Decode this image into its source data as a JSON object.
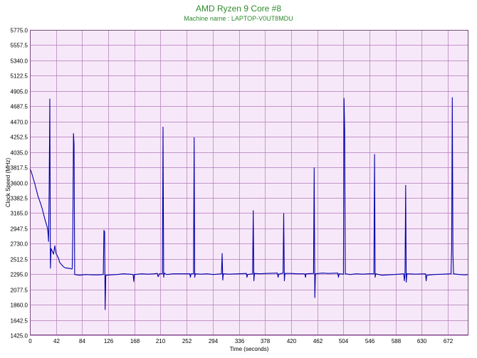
{
  "chart_data": {
    "type": "line",
    "title": "AMD Ryzen 9 Core #8",
    "subtitle": "Machine name : LAPTOP-V0UT8MDU",
    "xlabel": "Time (seconds)",
    "ylabel": "Clock Speed (MHz)",
    "xlim": [
      0,
      705
    ],
    "ylim": [
      1425.0,
      5775.0
    ],
    "x_ticks": [
      "0",
      "42",
      "84",
      "126",
      "168",
      "210",
      "252",
      "294",
      "336",
      "378",
      "420",
      "462",
      "504",
      "546",
      "588",
      "630",
      "672"
    ],
    "y_ticks": [
      "1425.0",
      "1642.5",
      "1860.0",
      "2077.5",
      "2295.0",
      "2512.5",
      "2730.0",
      "2947.5",
      "3165.0",
      "3382.5",
      "3600.0",
      "3817.5",
      "4035.0",
      "4252.5",
      "4470.0",
      "4687.5",
      "4905.0",
      "5122.5",
      "5340.0",
      "5557.5",
      "5775.0"
    ],
    "grid": true,
    "line_color": "#0000aa",
    "plot_background": "#f7e8f9",
    "grid_color": "#b07ab8",
    "series": [
      {
        "values": [
          [
            0,
            3800
          ],
          [
            2,
            3760
          ],
          [
            4,
            3700
          ],
          [
            6,
            3640
          ],
          [
            8,
            3580
          ],
          [
            10,
            3510
          ],
          [
            12,
            3440
          ],
          [
            14,
            3380
          ],
          [
            16,
            3330
          ],
          [
            18,
            3280
          ],
          [
            20,
            3220
          ],
          [
            22,
            3150
          ],
          [
            24,
            3080
          ],
          [
            26,
            3020
          ],
          [
            28,
            2960
          ],
          [
            29,
            2900
          ],
          [
            30,
            2760
          ],
          [
            31,
            3550
          ],
          [
            32,
            4790
          ],
          [
            33,
            2380
          ],
          [
            34,
            2660
          ],
          [
            36,
            2620
          ],
          [
            38,
            2580
          ],
          [
            40,
            2700
          ],
          [
            42,
            2590
          ],
          [
            44,
            2560
          ],
          [
            46,
            2520
          ],
          [
            48,
            2460
          ],
          [
            50,
            2440
          ],
          [
            52,
            2420
          ],
          [
            54,
            2400
          ],
          [
            56,
            2390
          ],
          [
            58,
            2380
          ],
          [
            60,
            2385
          ],
          [
            62,
            2375
          ],
          [
            64,
            2380
          ],
          [
            66,
            2370
          ],
          [
            68,
            2370
          ],
          [
            69,
            2900
          ],
          [
            70,
            4300
          ],
          [
            71,
            4150
          ],
          [
            72,
            2290
          ],
          [
            80,
            2280
          ],
          [
            90,
            2290
          ],
          [
            100,
            2285
          ],
          [
            110,
            2285
          ],
          [
            118,
            2290
          ],
          [
            119,
            2920
          ],
          [
            120,
            2900
          ],
          [
            121,
            1790
          ],
          [
            122,
            2280
          ],
          [
            130,
            2285
          ],
          [
            140,
            2290
          ],
          [
            150,
            2300
          ],
          [
            160,
            2295
          ],
          [
            166,
            2290
          ],
          [
            167,
            2190
          ],
          [
            168,
            2290
          ],
          [
            180,
            2300
          ],
          [
            190,
            2295
          ],
          [
            200,
            2300
          ],
          [
            205,
            2305
          ],
          [
            206,
            2260
          ],
          [
            207,
            2270
          ],
          [
            208,
            2300
          ],
          [
            210,
            2300
          ],
          [
            213,
            2300
          ],
          [
            214,
            4390
          ],
          [
            215,
            2250
          ],
          [
            216,
            2310
          ],
          [
            220,
            2290
          ],
          [
            230,
            2300
          ],
          [
            240,
            2300
          ],
          [
            250,
            2300
          ],
          [
            257,
            2300
          ],
          [
            258,
            2250
          ],
          [
            259,
            2300
          ],
          [
            263,
            2300
          ],
          [
            264,
            4240
          ],
          [
            265,
            2250
          ],
          [
            266,
            2300
          ],
          [
            275,
            2295
          ],
          [
            285,
            2300
          ],
          [
            295,
            2290
          ],
          [
            308,
            2300
          ],
          [
            309,
            2590
          ],
          [
            310,
            2210
          ],
          [
            311,
            2300
          ],
          [
            320,
            2295
          ],
          [
            335,
            2300
          ],
          [
            348,
            2305
          ],
          [
            349,
            2250
          ],
          [
            350,
            2290
          ],
          [
            358,
            2300
          ],
          [
            359,
            3200
          ],
          [
            360,
            2200
          ],
          [
            361,
            2305
          ],
          [
            370,
            2300
          ],
          [
            380,
            2305
          ],
          [
            398,
            2310
          ],
          [
            399,
            2250
          ],
          [
            400,
            2295
          ],
          [
            407,
            2310
          ],
          [
            408,
            3160
          ],
          [
            409,
            2200
          ],
          [
            410,
            2305
          ],
          [
            420,
            2305
          ],
          [
            430,
            2300
          ],
          [
            442,
            2300
          ],
          [
            443,
            2250
          ],
          [
            444,
            2300
          ],
          [
            456,
            2305
          ],
          [
            457,
            3810
          ],
          [
            458,
            1960
          ],
          [
            459,
            2300
          ],
          [
            470,
            2310
          ],
          [
            480,
            2305
          ],
          [
            495,
            2310
          ],
          [
            496,
            2250
          ],
          [
            497,
            2300
          ],
          [
            504,
            2295
          ],
          [
            505,
            4800
          ],
          [
            506,
            4350
          ],
          [
            507,
            2300
          ],
          [
            515,
            2290
          ],
          [
            525,
            2300
          ],
          [
            535,
            2295
          ],
          [
            545,
            2300
          ],
          [
            553,
            2300
          ],
          [
            554,
            4000
          ],
          [
            555,
            2250
          ],
          [
            556,
            2300
          ],
          [
            566,
            2280
          ],
          [
            576,
            2285
          ],
          [
            586,
            2290
          ],
          [
            601,
            2300
          ],
          [
            602,
            2200
          ],
          [
            603,
            2300
          ],
          [
            604,
            3560
          ],
          [
            605,
            2180
          ],
          [
            606,
            2300
          ],
          [
            620,
            2295
          ],
          [
            636,
            2300
          ],
          [
            637,
            2200
          ],
          [
            638,
            2280
          ],
          [
            650,
            2290
          ],
          [
            665,
            2295
          ],
          [
            677,
            2300
          ],
          [
            678,
            2650
          ],
          [
            679,
            4810
          ],
          [
            680,
            2600
          ],
          [
            681,
            2300
          ],
          [
            690,
            2290
          ],
          [
            700,
            2285
          ],
          [
            705,
            2290
          ]
        ]
      }
    ]
  }
}
